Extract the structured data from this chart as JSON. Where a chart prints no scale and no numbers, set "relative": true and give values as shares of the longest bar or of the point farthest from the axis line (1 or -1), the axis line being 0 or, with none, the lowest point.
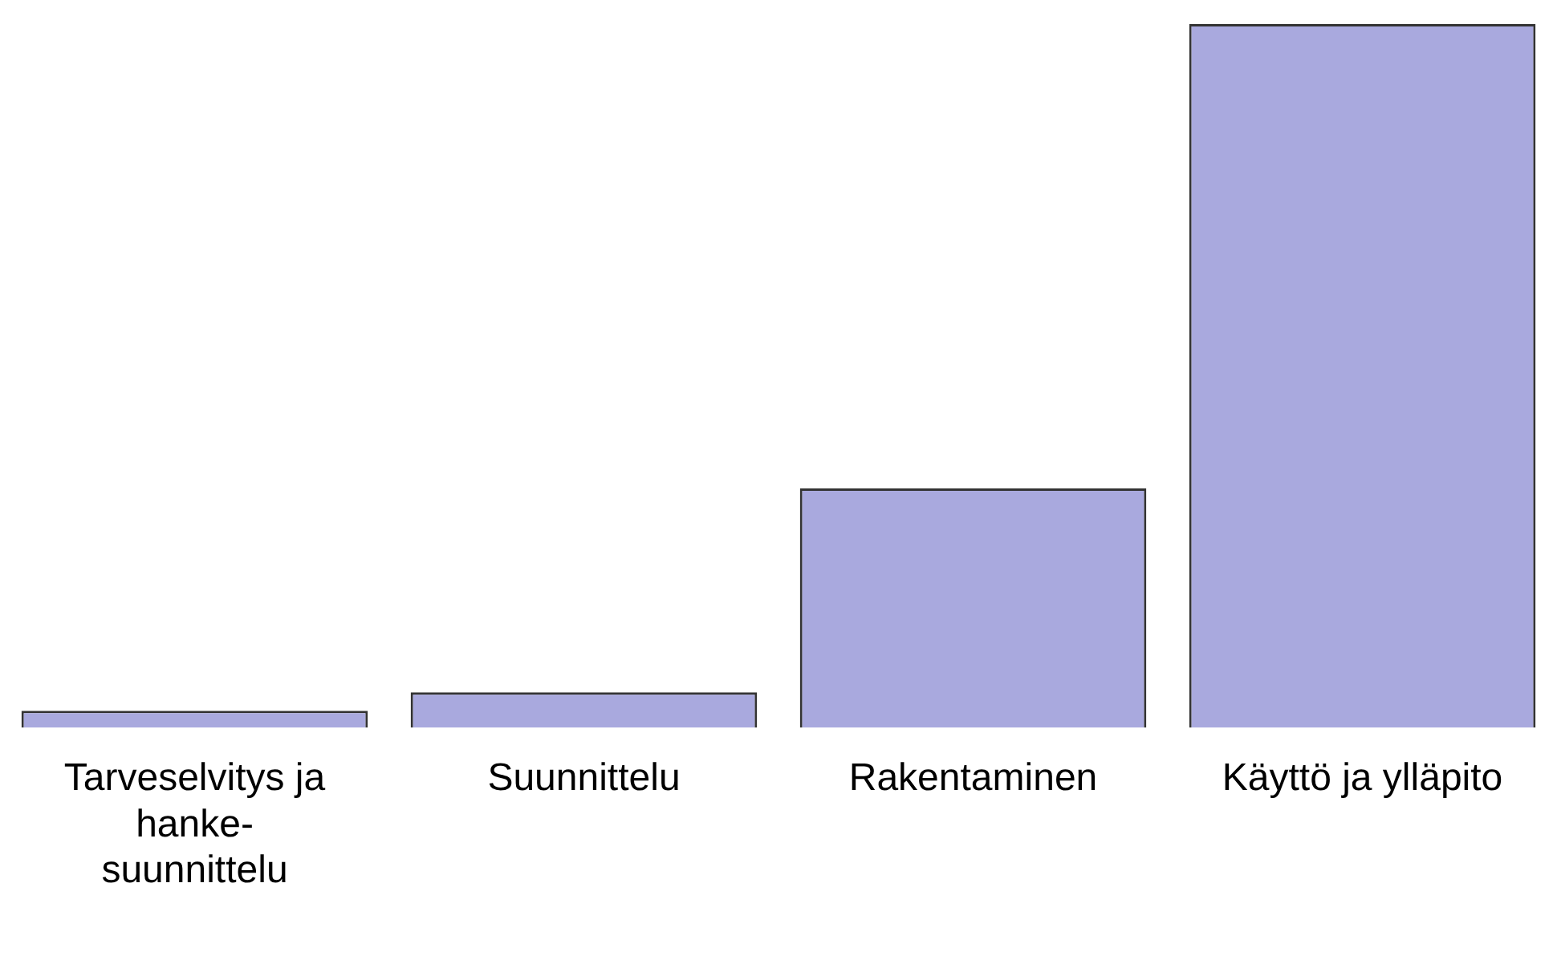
{
  "chart_data": {
    "type": "bar",
    "relative": true,
    "categories": [
      "Tarveselvitys ja hanke-suunnittelu",
      "Suunnittelu",
      "Rakentaminen",
      "Käyttö ja ylläpito"
    ],
    "values": [
      0.024,
      0.05,
      0.34,
      1
    ],
    "color": "#a9a9de",
    "grid": false,
    "legend": false
  }
}
